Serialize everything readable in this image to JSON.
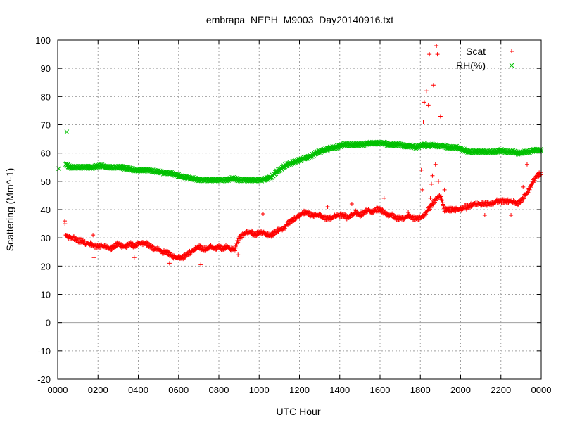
{
  "chart_data": {
    "type": "scatter",
    "title": "embrapa_NEPH_M9003_Day20140916.txt",
    "xlabel": "UTC Hour",
    "ylabel": "Scattering (Mm^-1)",
    "xlim": [
      0,
      24
    ],
    "ylim": [
      -20,
      100
    ],
    "x_ticks": [
      0,
      2,
      4,
      6,
      8,
      10,
      12,
      14,
      16,
      18,
      20,
      22,
      24
    ],
    "x_tick_labels": [
      "0000",
      "0200",
      "0400",
      "0600",
      "0800",
      "1000",
      "1200",
      "1400",
      "1600",
      "1800",
      "2000",
      "2200",
      "0000"
    ],
    "y_ticks": [
      -20,
      -10,
      0,
      10,
      20,
      30,
      40,
      50,
      60,
      70,
      80,
      90,
      100
    ],
    "grid": true,
    "zero_line": true,
    "legend_position": "top-right",
    "series": [
      {
        "name": "Scat",
        "marker": "+",
        "color": "#ff0000",
        "x": [
          0.4,
          0.6,
          0.8,
          1.0,
          1.2,
          1.4,
          1.6,
          1.8,
          2.0,
          2.2,
          2.4,
          2.6,
          2.8,
          3.0,
          3.2,
          3.4,
          3.6,
          3.8,
          4.0,
          4.2,
          4.4,
          4.6,
          4.8,
          5.0,
          5.2,
          5.4,
          5.6,
          5.8,
          6.0,
          6.2,
          6.4,
          6.6,
          6.8,
          7.0,
          7.2,
          7.4,
          7.6,
          7.8,
          8.0,
          8.2,
          8.4,
          8.6,
          8.8,
          9.0,
          9.2,
          9.4,
          9.6,
          9.8,
          10.0,
          10.2,
          10.4,
          10.6,
          10.8,
          11.0,
          11.2,
          11.4,
          11.6,
          11.8,
          12.0,
          12.2,
          12.4,
          12.6,
          12.8,
          13.0,
          13.2,
          13.4,
          13.6,
          13.8,
          14.0,
          14.2,
          14.4,
          14.6,
          14.8,
          15.0,
          15.2,
          15.4,
          15.6,
          15.8,
          16.0,
          16.2,
          16.4,
          16.6,
          16.8,
          17.0,
          17.2,
          17.4,
          17.6,
          17.8,
          18.0,
          18.2,
          18.4,
          18.6,
          18.8,
          19.0,
          19.2,
          19.4,
          19.6,
          19.8,
          20.0,
          20.2,
          20.4,
          20.6,
          20.8,
          21.0,
          21.2,
          21.4,
          21.6,
          21.8,
          22.0,
          22.2,
          22.4,
          22.6,
          22.8,
          23.0,
          23.2,
          23.4,
          23.6,
          23.8,
          24.0
        ],
        "y": [
          31,
          30,
          30,
          29,
          29,
          28,
          28,
          27,
          27,
          27,
          27,
          26,
          27,
          28,
          27,
          27,
          28,
          27,
          28,
          28,
          28,
          27,
          26,
          26,
          25,
          25,
          24,
          23,
          23,
          23,
          24,
          25,
          26,
          27,
          26,
          26,
          27,
          26,
          27,
          26,
          27,
          26,
          26,
          30,
          31,
          32,
          32,
          31,
          32,
          32,
          31,
          31,
          32,
          33,
          33,
          35,
          36,
          37,
          38,
          39,
          39,
          38,
          38,
          38,
          37,
          37,
          37,
          38,
          38,
          38,
          37,
          38,
          39,
          38,
          39,
          40,
          39,
          40,
          40,
          39,
          38,
          38,
          37,
          37,
          37,
          38,
          37,
          37,
          37,
          38,
          40,
          42,
          44,
          45,
          40,
          40,
          40,
          40,
          40,
          41,
          41,
          42,
          42,
          42,
          42,
          42,
          42,
          43,
          43,
          43,
          43,
          43,
          42,
          43,
          45,
          47,
          50,
          52,
          53
        ],
        "outliers_x": [
          0.35,
          0.36,
          1.75,
          1.8,
          2.9,
          3.8,
          5.55,
          7.1,
          8.95,
          10.2,
          13.4,
          14.6,
          16.2,
          17.4,
          18.05,
          18.1,
          18.15,
          18.2,
          18.3,
          18.4,
          18.45,
          18.5,
          18.55,
          18.6,
          18.65,
          18.75,
          18.8,
          18.85,
          18.9,
          19.0,
          19.2,
          19.3,
          20.3,
          21.2,
          22.5,
          22.9,
          23.1,
          23.3
        ],
        "outliers_y": [
          36,
          35,
          31,
          23,
          28,
          23,
          21,
          20.5,
          24,
          38.5,
          41,
          42,
          44,
          39,
          54,
          47,
          71,
          78,
          82,
          77,
          95,
          44,
          49,
          52,
          84,
          56,
          98,
          95,
          50,
          73,
          47,
          40,
          40,
          38,
          38,
          42,
          48,
          56
        ]
      },
      {
        "name": "RH(%)",
        "marker": "x",
        "color": "#00c000",
        "x": [
          0.4,
          0.6,
          0.8,
          1.0,
          1.2,
          1.4,
          1.6,
          1.8,
          2.0,
          2.2,
          2.4,
          2.6,
          2.8,
          3.0,
          3.2,
          3.4,
          3.6,
          3.8,
          4.0,
          4.2,
          4.4,
          4.6,
          4.8,
          5.0,
          5.2,
          5.4,
          5.6,
          5.8,
          6.0,
          6.2,
          6.4,
          6.6,
          6.8,
          7.0,
          7.2,
          7.4,
          7.6,
          7.8,
          8.0,
          8.2,
          8.4,
          8.6,
          8.8,
          9.0,
          9.2,
          9.4,
          9.6,
          9.8,
          10.0,
          10.2,
          10.4,
          10.6,
          10.8,
          11.0,
          11.2,
          11.4,
          11.6,
          11.8,
          12.0,
          12.2,
          12.4,
          12.6,
          12.8,
          13.0,
          13.2,
          13.4,
          13.6,
          13.8,
          14.0,
          14.2,
          14.4,
          14.6,
          14.8,
          15.0,
          15.2,
          15.4,
          15.6,
          15.8,
          16.0,
          16.2,
          16.4,
          16.6,
          16.8,
          17.0,
          17.2,
          17.4,
          17.6,
          17.8,
          18.0,
          18.2,
          18.4,
          18.6,
          18.8,
          19.0,
          19.2,
          19.4,
          19.6,
          19.8,
          20.0,
          20.2,
          20.4,
          20.6,
          20.8,
          21.0,
          21.2,
          21.4,
          21.6,
          21.8,
          22.0,
          22.2,
          22.4,
          22.6,
          22.8,
          23.0,
          23.2,
          23.4,
          23.6,
          23.8,
          24.0
        ],
        "y": [
          56,
          55,
          55,
          55,
          55,
          55,
          55,
          55,
          55.5,
          55.5,
          55,
          55,
          55,
          55,
          55,
          54.5,
          54.5,
          54,
          54,
          54,
          54,
          54,
          53.5,
          53.5,
          53,
          53,
          53,
          52.5,
          52,
          51.5,
          51.5,
          51,
          51,
          50.5,
          50.5,
          50.5,
          50.5,
          50.5,
          50.5,
          50.5,
          50.5,
          51,
          51,
          50.5,
          50.5,
          50.5,
          50.5,
          50.5,
          50.5,
          50.5,
          51,
          51.5,
          53,
          54,
          55,
          56,
          56.5,
          57,
          57.5,
          58,
          58.5,
          59,
          60,
          60.5,
          61,
          61.5,
          62,
          62,
          62.5,
          63,
          63,
          63,
          63,
          63,
          63,
          63.5,
          63.5,
          63.5,
          63.5,
          63.5,
          63,
          63,
          63,
          63,
          62.5,
          62.5,
          62.5,
          62,
          62.5,
          63,
          62.5,
          63,
          62.5,
          62.5,
          62.5,
          62,
          62,
          62,
          61.5,
          61,
          60.5,
          60.5,
          60.5,
          60.5,
          60.5,
          60.5,
          60.5,
          60.5,
          61,
          60.5,
          60.5,
          60.5,
          60,
          60,
          60.5,
          60.5,
          61,
          61,
          61
        ],
        "outliers_x": [
          0.05,
          0.45,
          0.5
        ],
        "outliers_y": [
          54.5,
          67.5,
          56
        ]
      }
    ]
  }
}
